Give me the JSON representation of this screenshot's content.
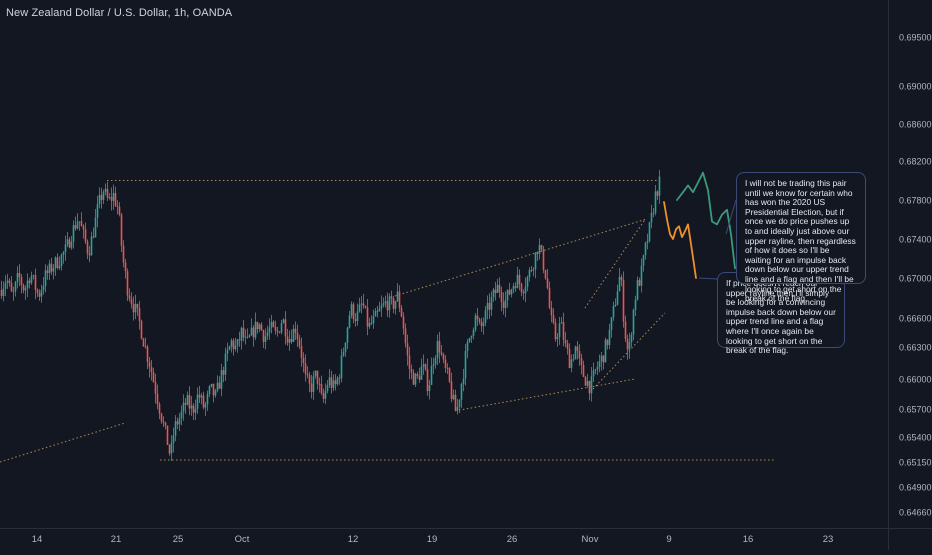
{
  "title": "New Zealand Dollar / U.S. Dollar, 1h, OANDA",
  "colors": {
    "background": "#131722",
    "up": "#26a69a",
    "down": "#ef5350",
    "guide": "#c8a060",
    "path_green": "#3b9a7c",
    "path_orange": "#f0902a",
    "axis_text": "#b2b5be",
    "axis_line": "#2a2e39"
  },
  "notes": {
    "primary": "I will not be trading this pair until we know for certain who has won the 2020 US Presidential Election, but if once we do price pushes up to and ideally just above our upper rayline, then regardless of how it does so I'll be waiting for an impulse back down below our upper trend line and a flag and then I'll be looking to get short on the break of the flag.",
    "secondary": "If price doesn't reach our upper rayline then I'll simply be looking for a convincing impulse back down below our upper trend line and a flag where I'll once again be looking to get short on the break of the flag."
  },
  "chart_data": {
    "type": "candlestick",
    "symbol": "NZDUSD",
    "timeframe": "1h",
    "title": "New Zealand Dollar / U.S. Dollar, 1h, OANDA",
    "x_tick_labels": [
      "14",
      "21",
      "25",
      "Oct",
      "12",
      "19",
      "26",
      "Nov",
      "9",
      "16",
      "23"
    ],
    "y_tick_labels": [
      "0.69500",
      "0.69000",
      "0.68600",
      "0.68200",
      "0.67800",
      "0.67400",
      "0.67000",
      "0.66600",
      "0.66300",
      "0.66000",
      "0.65700",
      "0.65400",
      "0.65150",
      "0.64900",
      "0.64660"
    ],
    "y_ticks": [
      0.695,
      0.69,
      0.686,
      0.682,
      0.678,
      0.674,
      0.67,
      0.666,
      0.663,
      0.66,
      0.657,
      0.654,
      0.6515,
      0.649,
      0.6466
    ],
    "price_path": [
      [
        0,
        0.6688
      ],
      [
        6,
        0.67
      ],
      [
        12,
        0.668
      ],
      [
        18,
        0.6702
      ],
      [
        24,
        0.6688
      ],
      [
        30,
        0.6705
      ],
      [
        38,
        0.6682
      ],
      [
        45,
        0.6702
      ],
      [
        52,
        0.6712
      ],
      [
        60,
        0.672
      ],
      [
        66,
        0.673
      ],
      [
        72,
        0.6748
      ],
      [
        78,
        0.6762
      ],
      [
        84,
        0.674
      ],
      [
        88,
        0.6726
      ],
      [
        93,
        0.6748
      ],
      [
        98,
        0.6775
      ],
      [
        103,
        0.679
      ],
      [
        108,
        0.6778
      ],
      [
        113,
        0.6785
      ],
      [
        118,
        0.677
      ],
      [
        122,
        0.6722
      ],
      [
        127,
        0.669
      ],
      [
        132,
        0.6675
      ],
      [
        138,
        0.666
      ],
      [
        144,
        0.6632
      ],
      [
        150,
        0.6612
      ],
      [
        156,
        0.6585
      ],
      [
        161,
        0.6562
      ],
      [
        166,
        0.654
      ],
      [
        170,
        0.652
      ],
      [
        174,
        0.655
      ],
      [
        180,
        0.6562
      ],
      [
        186,
        0.6578
      ],
      [
        192,
        0.6568
      ],
      [
        198,
        0.6585
      ],
      [
        204,
        0.657
      ],
      [
        210,
        0.659
      ],
      [
        215,
        0.6582
      ],
      [
        220,
        0.66
      ],
      [
        226,
        0.662
      ],
      [
        231,
        0.6635
      ],
      [
        236,
        0.6628
      ],
      [
        241,
        0.6645
      ],
      [
        246,
        0.6632
      ],
      [
        252,
        0.6645
      ],
      [
        258,
        0.6655
      ],
      [
        264,
        0.664
      ],
      [
        270,
        0.665
      ],
      [
        276,
        0.6642
      ],
      [
        282,
        0.666
      ],
      [
        288,
        0.6638
      ],
      [
        295,
        0.665
      ],
      [
        300,
        0.663
      ],
      [
        305,
        0.66
      ],
      [
        310,
        0.659
      ],
      [
        316,
        0.6605
      ],
      [
        322,
        0.6575
      ],
      [
        328,
        0.66
      ],
      [
        334,
        0.659
      ],
      [
        340,
        0.661
      ],
      [
        345,
        0.664
      ],
      [
        350,
        0.667
      ],
      [
        356,
        0.666
      ],
      [
        362,
        0.6675
      ],
      [
        368,
        0.665
      ],
      [
        374,
        0.6658
      ],
      [
        380,
        0.6668
      ],
      [
        386,
        0.6676
      ],
      [
        392,
        0.6672
      ],
      [
        397,
        0.6682
      ],
      [
        402,
        0.666
      ],
      [
        406,
        0.6625
      ],
      [
        410,
        0.6605
      ],
      [
        416,
        0.6598
      ],
      [
        422,
        0.6612
      ],
      [
        428,
        0.6592
      ],
      [
        433,
        0.662
      ],
      [
        438,
        0.6635
      ],
      [
        443,
        0.6612
      ],
      [
        448,
        0.66
      ],
      [
        452,
        0.658
      ],
      [
        456,
        0.6565
      ],
      [
        460,
        0.659
      ],
      [
        465,
        0.662
      ],
      [
        470,
        0.6645
      ],
      [
        475,
        0.666
      ],
      [
        480,
        0.6648
      ],
      [
        486,
        0.6665
      ],
      [
        492,
        0.668
      ],
      [
        498,
        0.6692
      ],
      [
        504,
        0.6675
      ],
      [
        510,
        0.6688
      ],
      [
        516,
        0.67
      ],
      [
        522,
        0.669
      ],
      [
        528,
        0.6702
      ],
      [
        534,
        0.672
      ],
      [
        538,
        0.6735
      ],
      [
        542,
        0.6718
      ],
      [
        546,
        0.67
      ],
      [
        550,
        0.666
      ],
      [
        555,
        0.664
      ],
      [
        560,
        0.6655
      ],
      [
        565,
        0.663
      ],
      [
        570,
        0.6615
      ],
      [
        575,
        0.663
      ],
      [
        580,
        0.661
      ],
      [
        585,
        0.66
      ],
      [
        590,
        0.6592
      ],
      [
        596,
        0.661
      ],
      [
        602,
        0.662
      ],
      [
        608,
        0.664
      ],
      [
        612,
        0.666
      ],
      [
        617,
        0.669
      ],
      [
        620,
        0.6705
      ],
      [
        624,
        0.665
      ],
      [
        628,
        0.662
      ],
      [
        632,
        0.666
      ],
      [
        636,
        0.669
      ],
      [
        640,
        0.67
      ],
      [
        645,
        0.673
      ],
      [
        650,
        0.6755
      ],
      [
        655,
        0.6785
      ],
      [
        660,
        0.68
      ]
    ],
    "trendlines": [
      {
        "from": [
          107,
          0.68
        ],
        "to": [
          660,
          0.68
        ]
      },
      {
        "from": [
          160,
          0.6517
        ],
        "to": [
          775,
          0.6517
        ]
      },
      {
        "from": [
          0,
          0.6515
        ],
        "to": [
          125,
          0.6555
        ]
      },
      {
        "from": [
          395,
          0.6682
        ],
        "to": [
          645,
          0.676
        ]
      },
      {
        "from": [
          455,
          0.6568
        ],
        "to": [
          635,
          0.66
        ]
      },
      {
        "from": [
          585,
          0.667
        ],
        "to": [
          645,
          0.676
        ]
      },
      {
        "from": [
          593,
          0.659
        ],
        "to": [
          665,
          0.6665
        ]
      }
    ],
    "projection_green": [
      [
        677,
        0.678
      ],
      [
        683,
        0.6788
      ],
      [
        688,
        0.6795
      ],
      [
        693,
        0.6788
      ],
      [
        698,
        0.6798
      ],
      [
        703,
        0.6808
      ],
      [
        708,
        0.679
      ],
      [
        712,
        0.6758
      ],
      [
        717,
        0.6755
      ],
      [
        722,
        0.6765
      ],
      [
        727,
        0.677
      ],
      [
        731,
        0.6745
      ],
      [
        735,
        0.671
      ]
    ],
    "projection_orange": [
      [
        664,
        0.6778
      ],
      [
        667,
        0.676
      ],
      [
        670,
        0.6745
      ],
      [
        673,
        0.674
      ],
      [
        676,
        0.675
      ],
      [
        679,
        0.6753
      ],
      [
        682,
        0.6742
      ],
      [
        685,
        0.6748
      ],
      [
        688,
        0.6755
      ],
      [
        692,
        0.6728
      ],
      [
        696,
        0.67
      ]
    ]
  }
}
